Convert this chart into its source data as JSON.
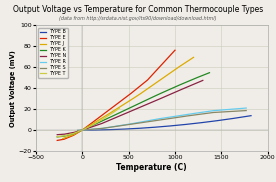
{
  "title": "Output Voltage vs Temperature for Common Thermocouple Types",
  "subtitle": "(data from http://srdata.nist.gov/its90/download/download.html)",
  "xlabel": "Temperature (C)",
  "ylabel": "Output Voltage (mV)",
  "xlim": [
    -500,
    2000
  ],
  "ylim": [
    -20,
    100
  ],
  "xticks": [
    -500,
    0,
    500,
    1000,
    1500,
    2000
  ],
  "yticks": [
    -20,
    0,
    20,
    40,
    60,
    80,
    100
  ],
  "series": [
    {
      "label": "TYPE B",
      "color": "#2244aa",
      "temp_range": [
        0,
        1820
      ],
      "end_mv": 13.82
    },
    {
      "label": "TYPE E",
      "color": "#dd2200",
      "temp_range": [
        -270,
        1000
      ],
      "end_mv": 76.37
    },
    {
      "label": "TYPE J",
      "color": "#ddaa00",
      "temp_range": [
        -210,
        1200
      ],
      "end_mv": 69.55
    },
    {
      "label": "TYPE K",
      "color": "#228822",
      "temp_range": [
        -270,
        1372
      ],
      "end_mv": 54.89
    },
    {
      "label": "TYPE N",
      "color": "#882244",
      "temp_range": [
        -270,
        1300
      ],
      "end_mv": 47.51
    },
    {
      "label": "TYPE R",
      "color": "#66ccee",
      "temp_range": [
        -50,
        1768
      ],
      "end_mv": 21.1
    },
    {
      "label": "TYPE S",
      "color": "#888866",
      "temp_range": [
        -50,
        1768
      ],
      "end_mv": 18.69
    },
    {
      "label": "TYPE T",
      "color": "#cccc44",
      "temp_range": [
        -270,
        400
      ],
      "end_mv": 20.87
    }
  ],
  "background_color": "#f0ede8",
  "plot_bg": "#f0ede8",
  "grid_color": "#ccccbb"
}
